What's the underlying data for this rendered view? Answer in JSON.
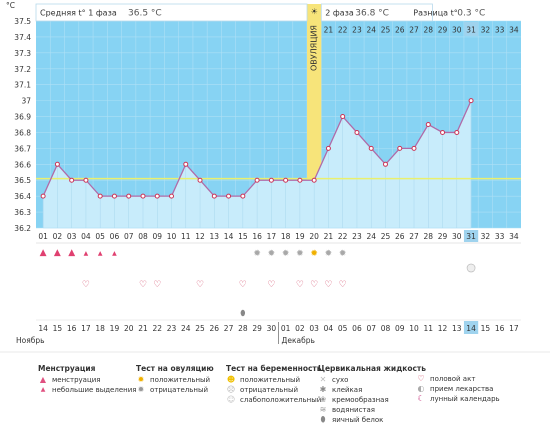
{
  "chart_data": {
    "type": "line",
    "yaxis_unit": "°C",
    "ylim": [
      36.2,
      37.5
    ],
    "yticks": [
      36.2,
      36.3,
      36.4,
      36.5,
      36.6,
      36.7,
      36.8,
      36.9,
      37,
      37.1,
      37.2,
      37.3,
      37.4,
      37.5
    ],
    "header": {
      "phase1_label": "Средняя t° 1 фаза",
      "phase1_value": "36.5 °C",
      "phase2_label": "2 фаза",
      "phase2_value": "36.8 °C",
      "diff_label": "Разница t°",
      "diff_value": "0.3 °C"
    },
    "ovulation_label": "ОВУЛЯЦИЯ",
    "ovulation_day": 20,
    "cycle_days": [
      "01",
      "02",
      "03",
      "04",
      "05",
      "06",
      "07",
      "08",
      "09",
      "10",
      "11",
      "12",
      "13",
      "14",
      "15",
      "16",
      "17",
      "18",
      "19",
      "20",
      "21",
      "22",
      "23",
      "24",
      "25",
      "26",
      "27",
      "28",
      "29",
      "30",
      "31",
      "32",
      "33",
      "34"
    ],
    "current_day": 31,
    "temperatures": [
      36.4,
      36.6,
      36.5,
      36.5,
      36.4,
      36.4,
      36.4,
      36.4,
      36.4,
      36.4,
      36.6,
      36.5,
      36.4,
      36.4,
      36.4,
      36.5,
      36.5,
      36.5,
      36.5,
      36.5,
      36.7,
      36.9,
      36.8,
      36.7,
      36.6,
      36.7,
      36.7,
      36.85,
      36.8,
      36.8,
      37.0
    ],
    "coverline": 36.51,
    "dates": [
      "14",
      "15",
      "16",
      "17",
      "18",
      "19",
      "20",
      "21",
      "22",
      "23",
      "24",
      "25",
      "26",
      "27",
      "28",
      "29",
      "30",
      "01",
      "02",
      "03",
      "04",
      "05",
      "06",
      "07",
      "08",
      "09",
      "10",
      "11",
      "12",
      "13",
      "14",
      "15",
      "16",
      "17"
    ],
    "red_date_indices": [
      4,
      5,
      11,
      12,
      16,
      19,
      26,
      27,
      33
    ],
    "blue_date_indices": [
      17,
      18
    ],
    "today_date_index": 30,
    "month_left": "Ноябрь",
    "month_right": "Декабрь",
    "menstruation_days": {
      "01": "heavy",
      "02": "heavy",
      "03": "heavy",
      "04": "light",
      "05": "light",
      "06": "light"
    },
    "ovulation_test": {
      "16": "negative",
      "17": "negative",
      "18": "negative",
      "19": "negative",
      "20": "positive",
      "21": "negative",
      "22": "negative"
    },
    "intercourse_days": [
      "04",
      "08",
      "09",
      "12",
      "15",
      "17",
      "19",
      "20",
      "21",
      "22"
    ],
    "pill_days": [
      "31"
    ],
    "cervical_days": {
      "15": "egg-white"
    },
    "legend": {
      "menstruation": {
        "title": "Менструация",
        "items": [
          "менструация",
          "небольшие выделения"
        ]
      },
      "ovulation_test": {
        "title": "Тест на овуляцию",
        "items": [
          "положительный",
          "отрицательный"
        ]
      },
      "pregnancy_test": {
        "title": "Тест на беременность",
        "items": [
          "положительный",
          "отрицательный",
          "слабоположительный"
        ]
      },
      "cervical": {
        "title": "Цервикальная жидкость",
        "items": [
          "сухо",
          "клейкая",
          "кремообразная",
          "водянистая",
          "яичный белок"
        ]
      },
      "other": {
        "items": [
          "половой акт",
          "прием лекарства",
          "лунный календарь"
        ]
      }
    },
    "colors": {
      "plot_bg": "#87d3f3",
      "fill": "#c8ecfb",
      "line": "#b06ba8",
      "point": "#cc3355",
      "coverline": "#eaf06e",
      "ovulation": "#f7e47a",
      "grid": "#aee0f6",
      "red_date": "#e0002a",
      "blue_date": "#3070b0",
      "highlight": "#9fd3ee"
    }
  }
}
